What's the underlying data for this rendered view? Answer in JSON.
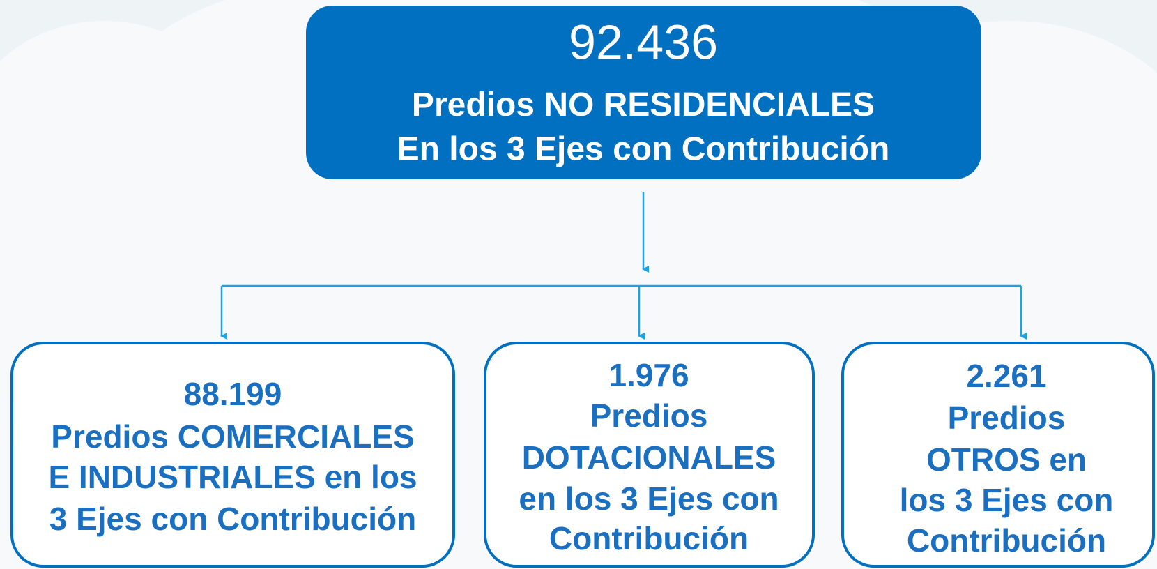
{
  "root": {
    "value": "92.436",
    "title_prefix": "Predios",
    "title_emphasis": "NO RESIDENCIALES",
    "subtitle": "En los 3 Ejes con Contribución"
  },
  "children": [
    {
      "value": "88.199",
      "lines": [
        "Predios COMERCIALES",
        "E INDUSTRIALES en los",
        "3 Ejes con Contribución"
      ]
    },
    {
      "value": "1.976",
      "lines": [
        "Predios",
        "DOTACIONALES",
        "en los 3 Ejes con",
        "Contribución"
      ]
    },
    {
      "value": "2.261",
      "lines": [
        "Predios",
        "OTROS en",
        "los 3 Ejes con",
        "Contribución"
      ]
    }
  ]
}
